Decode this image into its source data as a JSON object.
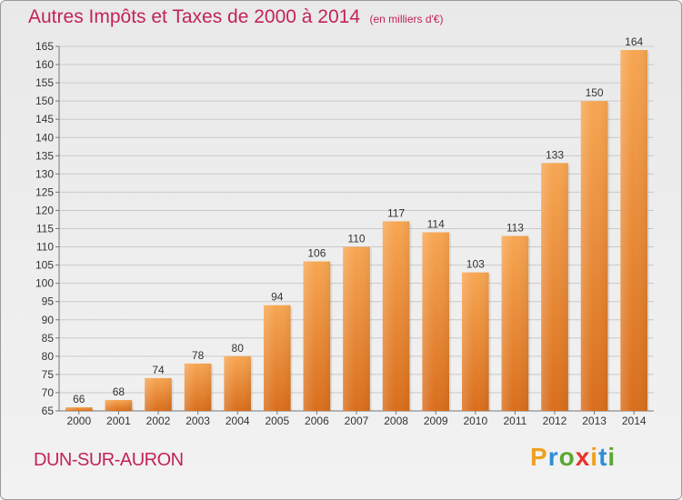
{
  "header": {
    "title": "Autres Impôts et Taxes de 2000 à 2014",
    "unit": "(en milliers d'€)"
  },
  "commune": "DUN-SUR-AURON",
  "logo": {
    "text": "Proxiti",
    "letters": [
      "P",
      "r",
      "o",
      "x",
      "i",
      "t",
      "i"
    ],
    "colors": [
      "#f0a020",
      "#2c8fd6",
      "#5aa830",
      "#e8332a",
      "#f0a020",
      "#2c8fd6",
      "#5aa830"
    ]
  },
  "colors": {
    "title": "#c2235b",
    "bar_light": "#f7a652",
    "bar_dark": "#d96e1c",
    "grid": "#c9c9c9"
  },
  "chart_data": {
    "type": "bar",
    "categories": [
      "2000",
      "2001",
      "2002",
      "2003",
      "2004",
      "2005",
      "2006",
      "2007",
      "2008",
      "2009",
      "2010",
      "2011",
      "2012",
      "2013",
      "2014"
    ],
    "values": [
      66,
      68,
      74,
      78,
      80,
      94,
      106,
      110,
      117,
      114,
      103,
      113,
      133,
      150,
      164
    ],
    "title": "Autres Impôts et Taxes de 2000 à 2014",
    "xlabel": "",
    "ylabel": "",
    "ylim": [
      65,
      165
    ],
    "yticks": [
      65,
      70,
      75,
      80,
      85,
      90,
      95,
      100,
      105,
      110,
      115,
      120,
      125,
      130,
      135,
      140,
      145,
      150,
      155,
      160,
      165
    ],
    "grid": true,
    "data_labels": true
  }
}
